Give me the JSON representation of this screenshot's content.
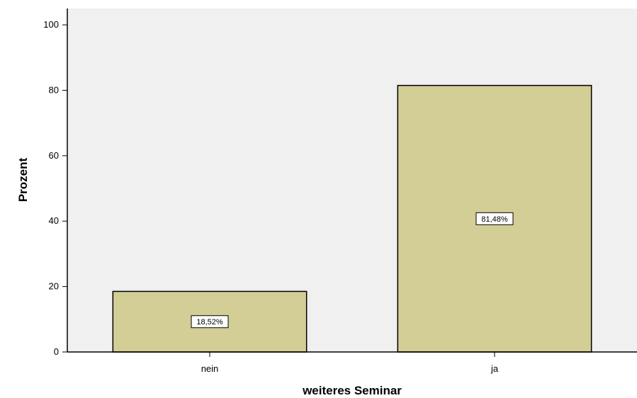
{
  "chart_data": {
    "type": "bar",
    "categories": [
      "nein",
      "ja"
    ],
    "values": [
      18.52,
      81.48
    ],
    "data_labels": [
      "18,52%",
      "81,48%"
    ],
    "xlabel": "weiteres Seminar",
    "ylabel": "Prozent",
    "ylim": [
      0,
      105
    ],
    "yticks": [
      0,
      20,
      40,
      60,
      80,
      100
    ],
    "grid": false,
    "colors": {
      "plot_background": "#f0f0f0",
      "bar_fill": "#d3cd96",
      "bar_stroke": "#000000",
      "axis": "#000000"
    }
  }
}
